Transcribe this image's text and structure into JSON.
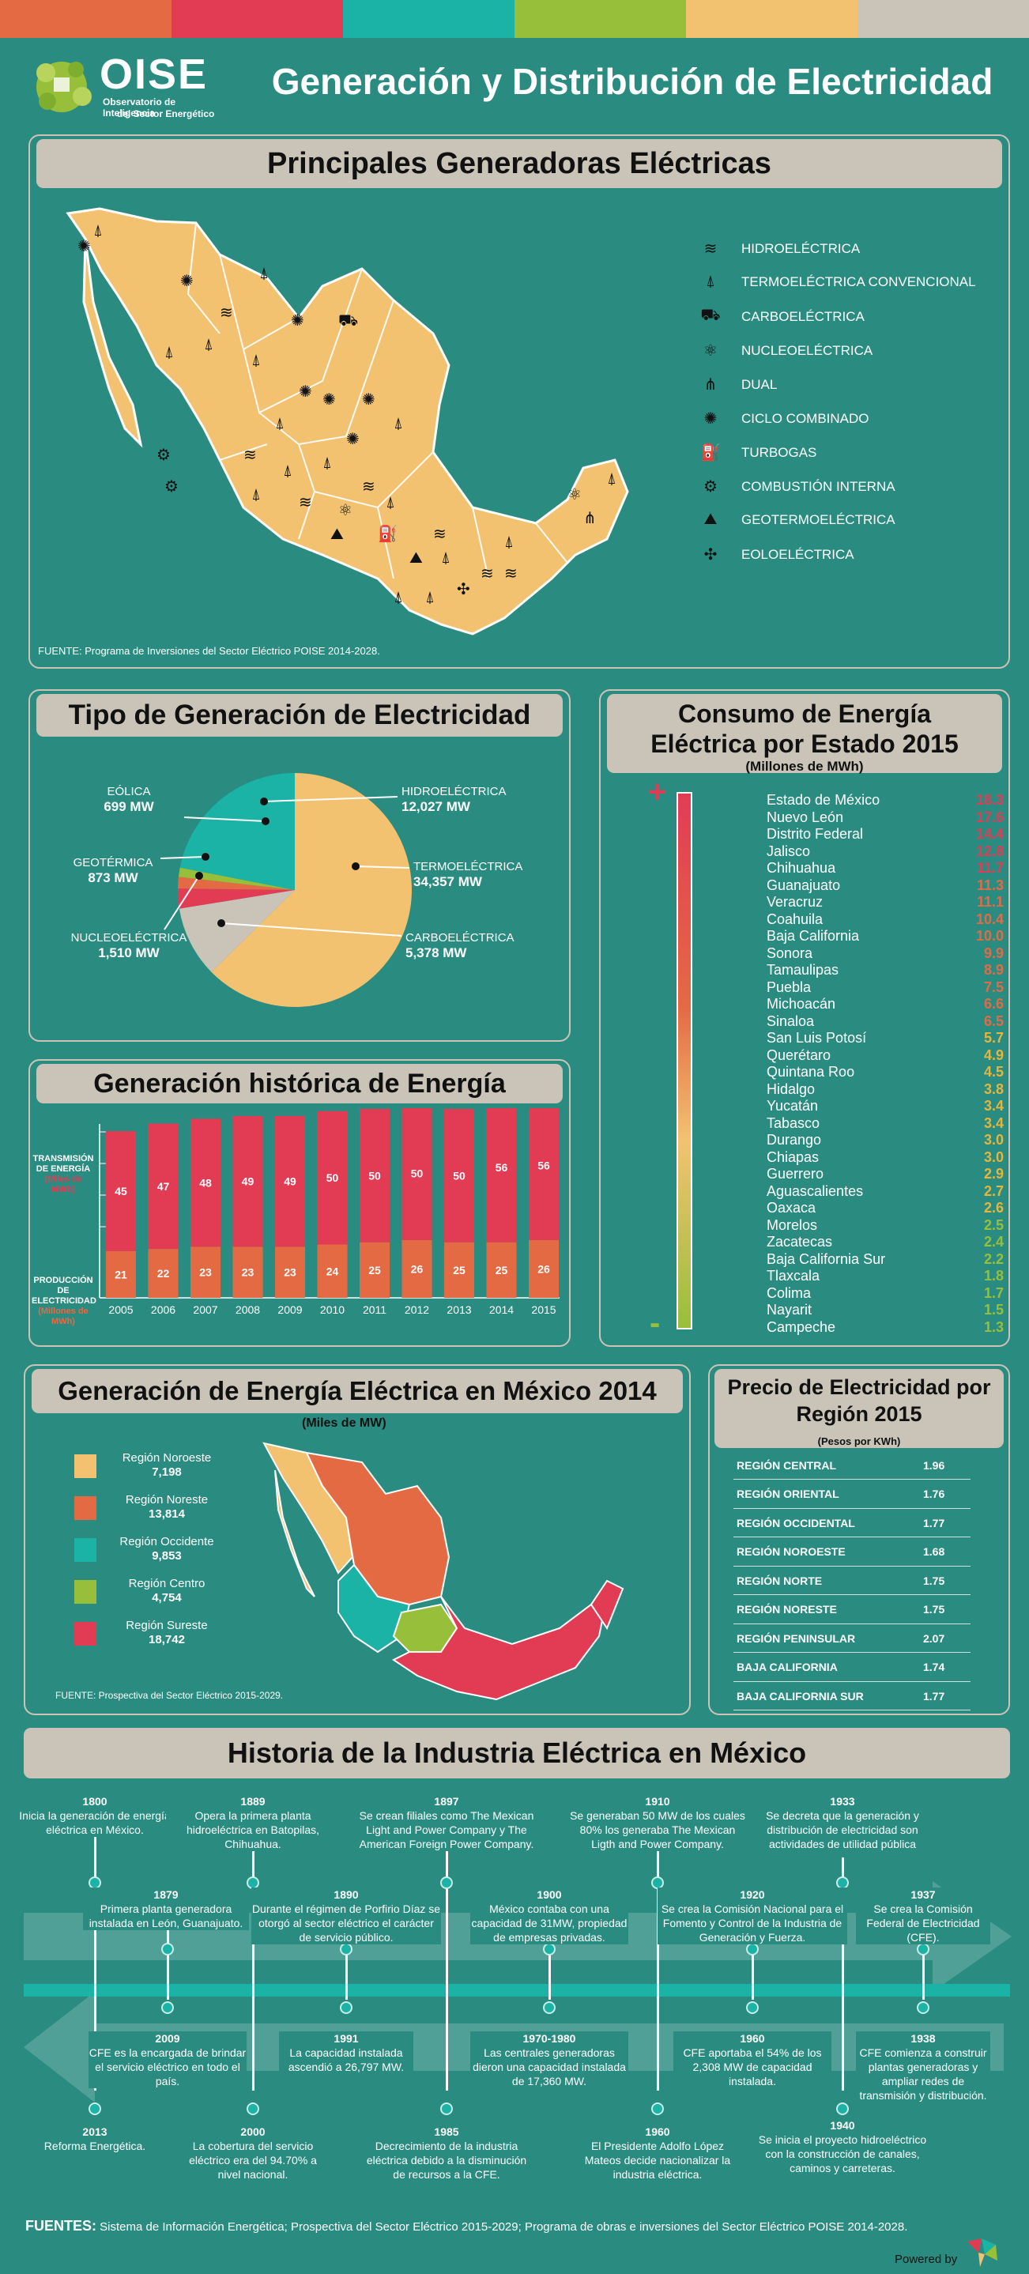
{
  "top_stripe_colors": [
    "#e46a44",
    "#e23c55",
    "#1cb3a7",
    "#98bf3a",
    "#f2c271",
    "#c9c4b7"
  ],
  "header": {
    "logo": "OISE",
    "logo_sub1": "Observatorio de Inteligencia",
    "logo_sub2": "del Sector Energético",
    "title": "Generación y Distribución de Electricidad"
  },
  "generators": {
    "title": "Principales Generadoras Eléctricas",
    "legend": [
      {
        "icon": "hydro-icon",
        "glyph": "≋",
        "label": "HIDROELÉCTRICA"
      },
      {
        "icon": "tower-icon",
        "glyph": "⍋",
        "label": "TERMOELÉCTRICA CONVENCIONAL"
      },
      {
        "icon": "coal-wagon-icon",
        "glyph": "⛟",
        "label": "CARBOELÉCTRICA"
      },
      {
        "icon": "atom-icon",
        "glyph": "⚛",
        "label": "NUCLEOELÉCTRICA"
      },
      {
        "icon": "dual-icon",
        "glyph": "⋔",
        "label": "DUAL"
      },
      {
        "icon": "combined-cycle-icon",
        "glyph": "✺",
        "label": "CICLO COMBINADO"
      },
      {
        "icon": "turbogas-icon",
        "glyph": "⛽",
        "label": "TURBOGAS"
      },
      {
        "icon": "engine-icon",
        "glyph": "⚙",
        "label": "COMBUSTIÓN INTERNA"
      },
      {
        "icon": "geothermal-icon",
        "glyph": "⛰",
        "label": "GEOTERMOELÉCTRICA"
      },
      {
        "icon": "wind-icon",
        "glyph": "✣",
        "label": "EOLOELÉCTRICA"
      }
    ],
    "source": "FUENTE: Programa de Inversiones del Sector Eléctrico POISE 2014-2028."
  },
  "generation_type": {
    "title": "Tipo de Generación de Electricidad",
    "labels": [
      {
        "name": "EÓLICA",
        "value": "699 MW"
      },
      {
        "name": "GEOTÉRMICA",
        "value": "873 MW"
      },
      {
        "name": "NUCLEOELÉCTRICA",
        "value": "1,510 MW"
      },
      {
        "name": "HIDROELÉCTRICA",
        "value": "12,027 MW"
      },
      {
        "name": "TERMOELÉCTRICA",
        "value": "34,357 MW"
      },
      {
        "name": "CARBOELÉCTRICA",
        "value": "5,378 MW"
      }
    ]
  },
  "consumption": {
    "title": "Consumo de Energía Eléctrica por Estado 2015",
    "subtitle": "(Millones de MWh)",
    "plus": "+",
    "minus": "-",
    "states": [
      {
        "name": "Estado de México",
        "value": "18.3"
      },
      {
        "name": "Nuevo León",
        "value": "17.6"
      },
      {
        "name": "Distrito Federal",
        "value": "14.4"
      },
      {
        "name": "Jalisco",
        "value": "12.8"
      },
      {
        "name": "Chihuahua",
        "value": "11.7"
      },
      {
        "name": "Guanajuato",
        "value": "11.3"
      },
      {
        "name": "Veracruz",
        "value": "11.1"
      },
      {
        "name": "Coahuila",
        "value": "10.4"
      },
      {
        "name": "Baja California",
        "value": "10.0"
      },
      {
        "name": "Sonora",
        "value": "9.9"
      },
      {
        "name": "Tamaulipas",
        "value": "8.9"
      },
      {
        "name": "Puebla",
        "value": "7.5"
      },
      {
        "name": "Michoacán",
        "value": "6.6"
      },
      {
        "name": "Sinaloa",
        "value": "6.5"
      },
      {
        "name": "San Luis Potosí",
        "value": "5.7"
      },
      {
        "name": "Querétaro",
        "value": "4.9"
      },
      {
        "name": "Quintana Roo",
        "value": "4.5"
      },
      {
        "name": "Hidalgo",
        "value": "3.8"
      },
      {
        "name": "Yucatán",
        "value": "3.4"
      },
      {
        "name": "Tabasco",
        "value": "3.4"
      },
      {
        "name": "Durango",
        "value": "3.0"
      },
      {
        "name": "Chiapas",
        "value": "3.0"
      },
      {
        "name": "Guerrero",
        "value": "2.9"
      },
      {
        "name": "Aguascalientes",
        "value": "2.7"
      },
      {
        "name": "Oaxaca",
        "value": "2.6"
      },
      {
        "name": "Morelos",
        "value": "2.5"
      },
      {
        "name": "Zacatecas",
        "value": "2.4"
      },
      {
        "name": "Baja California Sur",
        "value": "2.2"
      },
      {
        "name": "Tlaxcala",
        "value": "1.8"
      },
      {
        "name": "Colima",
        "value": "1.7"
      },
      {
        "name": "Nayarit",
        "value": "1.5"
      },
      {
        "name": "Campeche",
        "value": "1.3"
      }
    ]
  },
  "historic": {
    "title": "Generación histórica de Energía",
    "label_transmission": "TRANSMISIÓN DE ENERGÍA",
    "label_transmission_unit": "(Miles de MWh)",
    "label_production": "PRODUCCIÓN DE ELECTRICIDAD",
    "label_production_unit": "(Millones de MWh)"
  },
  "gen2014": {
    "title": "Generación de Energía Eléctrica en México 2014",
    "unit": "(Miles de MW)",
    "regions": [
      {
        "name": "Región Noroeste",
        "value": "7,198",
        "color": "#f2c271"
      },
      {
        "name": "Región Noreste",
        "value": "13,814",
        "color": "#e46a44"
      },
      {
        "name": "Región Occidente",
        "value": "9,853",
        "color": "#1cb3a7"
      },
      {
        "name": "Región Centro",
        "value": "4,754",
        "color": "#98bf3a"
      },
      {
        "name": "Región Sureste",
        "value": "18,742",
        "color": "#e23c55"
      }
    ],
    "source": "FUENTE: Prospectiva del Sector Eléctrico 2015-2029."
  },
  "price": {
    "title": "Precio de Electricidad por Región 2015",
    "unit": "(Pesos por KWh)",
    "rows": [
      {
        "region": "REGIÓN CENTRAL",
        "value": "1.96"
      },
      {
        "region": "REGIÓN ORIENTAL",
        "value": "1.76"
      },
      {
        "region": "REGIÓN OCCIDENTAL",
        "value": "1.77"
      },
      {
        "region": "REGIÓN NOROESTE",
        "value": "1.68"
      },
      {
        "region": "REGIÓN NORTE",
        "value": "1.75"
      },
      {
        "region": "REGIÓN NORESTE",
        "value": "1.75"
      },
      {
        "region": "REGIÓN PENINSULAR",
        "value": "2.07"
      },
      {
        "region": "BAJA CALIFORNIA",
        "value": "1.74"
      },
      {
        "region": "BAJA CALIFORNIA SUR",
        "value": "1.77"
      }
    ]
  },
  "history": {
    "title": "Historia de la Industria Eléctrica en México",
    "events": [
      {
        "year": "1800",
        "text": "Inicia la generación de energía eléctrica en México."
      },
      {
        "year": "1879",
        "text": "Primera planta generadora instalada en León, Guanajuato."
      },
      {
        "year": "1889",
        "text": "Opera la primera planta hidroeléctrica en Batopilas, Chihuahua."
      },
      {
        "year": "1890",
        "text": "Durante el régimen de Porfirio Díaz se otorgó al sector eléctrico el carácter de servicio público."
      },
      {
        "year": "1897",
        "text": "Se crean filiales como The Mexican Light and Power Company y The American Foreign Power Company."
      },
      {
        "year": "1900",
        "text": "México contaba con una capacidad de 31MW, propiedad de empresas privadas."
      },
      {
        "year": "1910",
        "text": "Se generaban 50 MW de los cuales 80% los generaba The Mexican Ligth and Power Company."
      },
      {
        "year": "1920",
        "text": "Se crea la Comisión Nacional para el Fomento y Control de la Industria de Generación y Fuerza."
      },
      {
        "year": "1933",
        "text": "Se decreta que la generación y distribución de electricidad son actividades de utilidad pública"
      },
      {
        "year": "1937",
        "text": "Se crea la Comisión Federal de Electricidad (CFE)."
      },
      {
        "year": "2009",
        "text": "CFE es la encargada de brindar el servicio eléctrico en todo el país."
      },
      {
        "year": "1991",
        "text": "La capacidad instalada ascendió a 26,797 MW."
      },
      {
        "year": "1970-1980",
        "text": "Las centrales generadoras dieron una capacidad instalada de 17,360 MW."
      },
      {
        "year": "1960",
        "text": "CFE aportaba el 54% de los 2,308 MW de capacidad instalada."
      },
      {
        "year": "1938",
        "text": "CFE comienza a construir plantas generadoras y ampliar redes de transmisión y distribución."
      },
      {
        "year": "2013",
        "text": "Reforma Energética."
      },
      {
        "year": "2000",
        "text": "La cobertura del servicio eléctrico era del 94.70% a nivel nacional."
      },
      {
        "year": "1985",
        "text": "Decrecimiento de la industria eléctrica debido a la disminución de recursos a la CFE."
      },
      {
        "year": "1960",
        "text": "El Presidente Adolfo López Mateos decide nacionalizar la industria eléctrica."
      },
      {
        "year": "1940",
        "text": "Se inicia el proyecto hidroeléctrico con la construcción de canales, caminos y carreteras."
      }
    ]
  },
  "footer": {
    "label": "FUENTES:",
    "text": "Sistema de Información Energética; Prospectiva del Sector Eléctrico 2015-2029; Programa de obras e inversiones del Sector Eléctrico POISE 2014-2028.",
    "powered": "Powered by"
  },
  "chart_data": [
    {
      "type": "pie",
      "title": "Tipo de Generación de Electricidad",
      "categories": [
        "TERMOELÉCTRICA",
        "CARBOELÉCTRICA",
        "NUCLEOELÉCTRICA",
        "GEOTÉRMICA",
        "EÓLICA",
        "HIDROELÉCTRICA"
      ],
      "values": [
        34357,
        5378,
        1510,
        873,
        699,
        12027
      ],
      "colors": [
        "#f2c271",
        "#c9c4b7",
        "#e23c55",
        "#e46a44",
        "#98bf3a",
        "#1cb3a7"
      ]
    },
    {
      "type": "bar",
      "title": "Generación histórica de Energía",
      "categories": [
        "2005",
        "2006",
        "2007",
        "2008",
        "2009",
        "2010",
        "2011",
        "2012",
        "2013",
        "2014",
        "2015"
      ],
      "series": [
        {
          "name": "PRODUCCIÓN DE ELECTRICIDAD",
          "values": [
            21,
            22,
            23,
            23,
            23,
            24,
            25,
            26,
            25,
            25,
            26
          ],
          "color": "#e46a44"
        },
        {
          "name": "TRANSMISIÓN DE ENERGÍA",
          "values": [
            45,
            47,
            48,
            49,
            49,
            50,
            50,
            50,
            50,
            56,
            56
          ],
          "color": "#e23c55"
        }
      ],
      "stacked": true
    }
  ]
}
